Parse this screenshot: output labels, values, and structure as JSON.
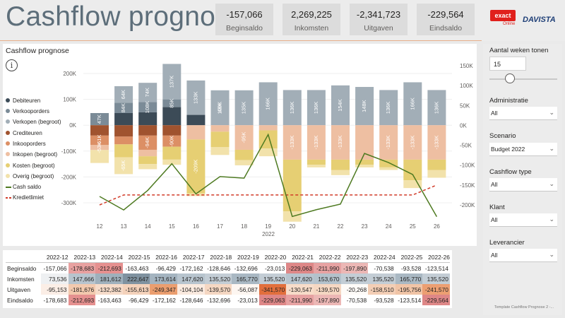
{
  "header": {
    "title": "Cashflow prognose",
    "kpis": [
      {
        "value": "-157,066",
        "label": "Beginsaldo"
      },
      {
        "value": "2,269,225",
        "label": "Inkomsten"
      },
      {
        "value": "-2,341,723",
        "label": "Uitgaven"
      },
      {
        "value": "-229,564",
        "label": "Eindsaldo"
      }
    ],
    "logo_exact": "exact",
    "logo_exact_sub": "Online",
    "logo_davista": "DAVISTA"
  },
  "chart": {
    "title": "Cashflow prognose",
    "info_icon": "i",
    "year_label": "2022"
  },
  "legend": [
    {
      "label": "Debiteuren",
      "color": "#3c4b57",
      "kind": "dot"
    },
    {
      "label": "Verkooporders",
      "color": "#7b8b97",
      "kind": "dot"
    },
    {
      "label": "Verkopen (begroot)",
      "color": "#a2aeb7",
      "kind": "dot"
    },
    {
      "label": "Crediteuren",
      "color": "#a0532f",
      "kind": "dot"
    },
    {
      "label": "Inkooporders",
      "color": "#dc8f65",
      "kind": "dot"
    },
    {
      "label": "Inkopen (begroot)",
      "color": "#eebfa2",
      "kind": "dot"
    },
    {
      "label": "Kosten (begroot)",
      "color": "#e6cf73",
      "kind": "dot"
    },
    {
      "label": "Overig (begroot)",
      "color": "#f2e2ab",
      "kind": "dot"
    },
    {
      "label": "Cash saldo",
      "color": "#4e7a21",
      "kind": "line"
    },
    {
      "label": "Kredietlimiet",
      "color": "#d13a28",
      "kind": "dash"
    }
  ],
  "chart_data": {
    "type": "bar",
    "categories": [
      "12",
      "13",
      "14",
      "15",
      "16",
      "17",
      "18",
      "19",
      "20",
      "21",
      "22",
      "23",
      "24",
      "25",
      "26"
    ],
    "xlabel": "2022",
    "ylim_left": [
      -300000,
      200000
    ],
    "ylim_right": [
      -200000,
      150000
    ],
    "left_ticks": [
      "200K",
      "100K",
      "0K",
      "-100K",
      "-200K",
      "-300K"
    ],
    "right_ticks": [
      "150K",
      "100K",
      "50K",
      "0K",
      "-50K",
      "-100K",
      "-150K",
      "-200K"
    ],
    "series": [
      {
        "name": "Debiteuren",
        "color": "#3c4b57",
        "values": [
          0,
          47000,
          50000,
          70000,
          40000,
          0,
          0,
          0,
          0,
          0,
          0,
          0,
          0,
          0,
          0
        ]
      },
      {
        "name": "Verkooporders",
        "color": "#7b8b97",
        "values": [
          47000,
          40000,
          40000,
          30000,
          0,
          0,
          0,
          0,
          0,
          0,
          0,
          0,
          0,
          0,
          0
        ]
      },
      {
        "name": "Verkopen (begroot)",
        "color": "#a2aeb7",
        "values": [
          0,
          64000,
          74000,
          137000,
          133000,
          135000,
          135000,
          166000,
          136000,
          136000,
          154000,
          148000,
          136000,
          166000,
          136000
        ]
      },
      {
        "name": "Crediteuren",
        "color": "#a0532f",
        "values": [
          -40000,
          -44000,
          -40000,
          -40000,
          0,
          0,
          0,
          0,
          0,
          0,
          0,
          0,
          0,
          0,
          0
        ]
      },
      {
        "name": "Inkooporders",
        "color": "#dc8f65",
        "values": [
          -36000,
          -30000,
          -55000,
          -43000,
          0,
          0,
          0,
          0,
          0,
          0,
          0,
          0,
          0,
          0,
          0
        ]
      },
      {
        "name": "Inkopen (begroot)",
        "color": "#eebfa2",
        "values": [
          -20000,
          0,
          -25000,
          0,
          -55000,
          -25000,
          -95000,
          -20000,
          -133000,
          -133000,
          -133000,
          -133000,
          -133000,
          -133000,
          -133000
        ]
      },
      {
        "name": "Kosten (begroot)",
        "color": "#e6cf73",
        "values": [
          0,
          -50000,
          -30000,
          -50000,
          -209000,
          -60000,
          -40000,
          -70000,
          -200000,
          -20000,
          -40000,
          -20000,
          -30000,
          -80000,
          -40000
        ]
      },
      {
        "name": "Overig (begroot)",
        "color": "#f2e2ab",
        "values": [
          -50000,
          -65000,
          -20000,
          -20000,
          -10000,
          -30000,
          -20000,
          -30000,
          -40000,
          -10000,
          -20000,
          -10000,
          -10000,
          -30000,
          -30000
        ]
      }
    ],
    "bar_labels": [
      {
        "week": 0,
        "series": 1,
        "text": "47K"
      },
      {
        "week": 0,
        "series": 4,
        "text": "-61K"
      },
      {
        "week": 0,
        "series": 5,
        "text": "-53K"
      },
      {
        "week": 1,
        "series": 2,
        "text": "64K"
      },
      {
        "week": 1,
        "series": 1,
        "text": "84K"
      },
      {
        "week": 1,
        "series": 7,
        "text": "-65K"
      },
      {
        "week": 2,
        "series": 2,
        "text": "74K"
      },
      {
        "week": 2,
        "series": 1,
        "text": "108K"
      },
      {
        "week": 2,
        "series": 4,
        "text": "-94K"
      },
      {
        "week": 3,
        "series": 2,
        "text": "137K"
      },
      {
        "week": 3,
        "series": 1,
        "text": "85K"
      },
      {
        "week": 3,
        "series": 4,
        "text": "-90K"
      },
      {
        "week": 4,
        "series": 2,
        "text": "133K"
      },
      {
        "week": 4,
        "series": 6,
        "text": "-209K"
      },
      {
        "week": 5,
        "series": 2,
        "text": "100K"
      },
      {
        "week": 5,
        "series": 2,
        "text": "48K"
      },
      {
        "week": 6,
        "series": 2,
        "text": "135K"
      },
      {
        "week": 6,
        "series": 5,
        "text": "-95K"
      },
      {
        "week": 7,
        "series": 2,
        "text": "166K"
      },
      {
        "week": 8,
        "series": 2,
        "text": "136K"
      },
      {
        "week": 8,
        "series": 5,
        "text": "-133K"
      },
      {
        "week": 9,
        "series": 2,
        "text": "136K"
      },
      {
        "week": 9,
        "series": 5,
        "text": "-133K"
      },
      {
        "week": 10,
        "series": 2,
        "text": "154K"
      },
      {
        "week": 10,
        "series": 5,
        "text": "-133K"
      },
      {
        "week": 11,
        "series": 2,
        "text": "148K"
      },
      {
        "week": 12,
        "series": 2,
        "text": "136K"
      },
      {
        "week": 12,
        "series": 5,
        "text": "-133K"
      },
      {
        "week": 13,
        "series": 2,
        "text": "166K"
      },
      {
        "week": 13,
        "series": 5,
        "text": "-133K"
      },
      {
        "week": 14,
        "series": 2,
        "text": "136K"
      },
      {
        "week": 14,
        "series": 5,
        "text": "-133K"
      }
    ],
    "cash_saldo": [
      -178683,
      -212693,
      -163463,
      -96429,
      -172162,
      -128646,
      -132696,
      -23013,
      -229063,
      -211990,
      -197890,
      -70538,
      -93528,
      -123514,
      -229564
    ],
    "kredietlimiet": [
      -200000,
      -175000,
      -175000,
      -175000,
      -175000,
      -175000,
      -175000,
      -175000,
      -175000,
      -175000,
      -175000,
      -175000,
      -175000,
      -175000,
      -150000
    ]
  },
  "table": {
    "columns": [
      "",
      "2022-12",
      "2022-13",
      "2022-14",
      "2022-15",
      "2022-16",
      "2022-17",
      "2022-18",
      "2022-19",
      "2022-20",
      "2022-21",
      "2022-22",
      "2022-23",
      "2022-24",
      "2022-25",
      "2022-26"
    ],
    "rows": [
      {
        "label": "Beginsaldo",
        "values": [
          "-157,066",
          "-178,683",
          "-212,693",
          "-163,463",
          "-96,429",
          "-172,162",
          "-128,646",
          "-132,696",
          "-23,013",
          "-229,063",
          "-211,990",
          "-197,890",
          "-70,538",
          "-93,528",
          "-123,514"
        ],
        "colors": [
          "#ffffff",
          "#e8a1a0",
          "#e5908f",
          "#ffffff",
          "#ffffff",
          "#ffffff",
          "#ffffff",
          "#ffffff",
          "#ffffff",
          "#de8787",
          "#e7a2a2",
          "#ecb7b5",
          "#ffffff",
          "#ffffff",
          "#ffffff"
        ]
      },
      {
        "label": "Inkomsten",
        "values": [
          "73,536",
          "147,666",
          "181,612",
          "222,647",
          "173,614",
          "147,620",
          "135,520",
          "165,770",
          "135,520",
          "147,620",
          "153,670",
          "135,520",
          "135,520",
          "165,770",
          "135,520"
        ],
        "colors": [
          "#eef0f2",
          "#b7c4ce",
          "#9fb0bc",
          "#7f92a0",
          "#a4b4c0",
          "#b7c4ce",
          "#c3cdd5",
          "#a9b8c3",
          "#c3cdd5",
          "#b7c4ce",
          "#b3c1cb",
          "#c3cdd5",
          "#c3cdd5",
          "#a9b8c3",
          "#c3cdd5"
        ]
      },
      {
        "label": "Uitgaven",
        "values": [
          "-95,153",
          "-181,676",
          "-132,382",
          "-155,613",
          "-249,347",
          "-104,104",
          "-139,570",
          "-56,087",
          "-341,570",
          "-130,547",
          "-139,570",
          "-20,268",
          "-158,510",
          "-195,756",
          "-241,570"
        ],
        "colors": [
          "#fbeee6",
          "#f2c9ae",
          "#f6dbc9",
          "#f4d2bb",
          "#eb9e6f",
          "#faeadf",
          "#f5d7c2",
          "#fdf6f1",
          "#e26f3c",
          "#f7dcc9",
          "#f5d7c2",
          "#fefbf8",
          "#f3ceb5",
          "#f1c4a6",
          "#ec9f72"
        ]
      },
      {
        "label": "Eindsaldo",
        "values": [
          "-178,683",
          "-212,693",
          "-163,463",
          "-96,429",
          "-172,162",
          "-128,646",
          "-132,696",
          "-23,013",
          "-229,063",
          "-211,990",
          "-197,890",
          "-70,538",
          "-93,528",
          "-123,514",
          "-229,564"
        ],
        "colors": [
          "#ffffff",
          "#e5908f",
          "#ffffff",
          "#ffffff",
          "#ffffff",
          "#ffffff",
          "#ffffff",
          "#ffffff",
          "#de8787",
          "#e7a2a2",
          "#ecb7b5",
          "#ffffff",
          "#ffffff",
          "#ffffff",
          "#de8787"
        ]
      }
    ]
  },
  "side": {
    "weeks_label": "Aantal weken tonen",
    "weeks_value": "15",
    "weeks_slider_level": 0.3,
    "filters": [
      {
        "label": "Administratie",
        "value": "All"
      },
      {
        "label": "Scenario",
        "value": "Budget 2022"
      },
      {
        "label": "Cashflow type",
        "value": "All"
      },
      {
        "label": "Klant",
        "value": "All"
      },
      {
        "label": "Leverancier",
        "value": "All"
      }
    ],
    "footnote": "Template Cashflow Prognose 2 -..."
  }
}
